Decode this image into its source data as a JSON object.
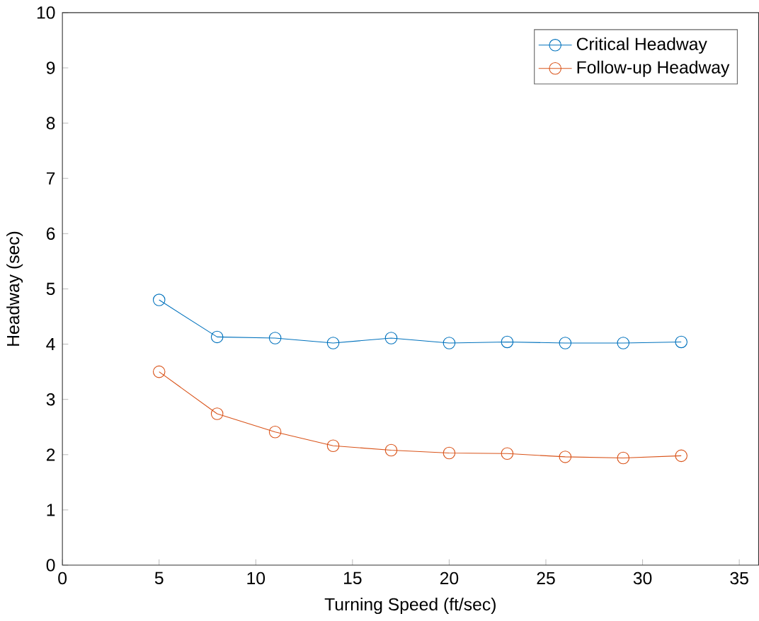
{
  "chart_data": {
    "type": "line",
    "xlabel": "Turning Speed (ft/sec)",
    "ylabel": "Headway (sec)",
    "x": [
      5,
      8,
      11,
      14,
      17,
      20,
      23,
      26,
      29,
      32
    ],
    "series": [
      {
        "name": "Critical Headway",
        "color": "#0072bd",
        "values": [
          4.8,
          4.13,
          4.11,
          4.02,
          4.11,
          4.02,
          4.04,
          4.02,
          4.02,
          4.04
        ]
      },
      {
        "name": "Follow-up Headway",
        "color": "#d95319",
        "values": [
          3.5,
          2.74,
          2.41,
          2.16,
          2.08,
          2.03,
          2.02,
          1.96,
          1.94,
          1.98
        ]
      }
    ],
    "xlim": [
      0,
      36
    ],
    "xticks": [
      0,
      5,
      10,
      15,
      20,
      25,
      30,
      35
    ],
    "ylim": [
      0,
      10
    ],
    "yticks": [
      0,
      1,
      2,
      3,
      4,
      5,
      6,
      7,
      8,
      9,
      10
    ],
    "grid": false,
    "legend": "top right",
    "marker": "circle",
    "line_style": "solid"
  }
}
